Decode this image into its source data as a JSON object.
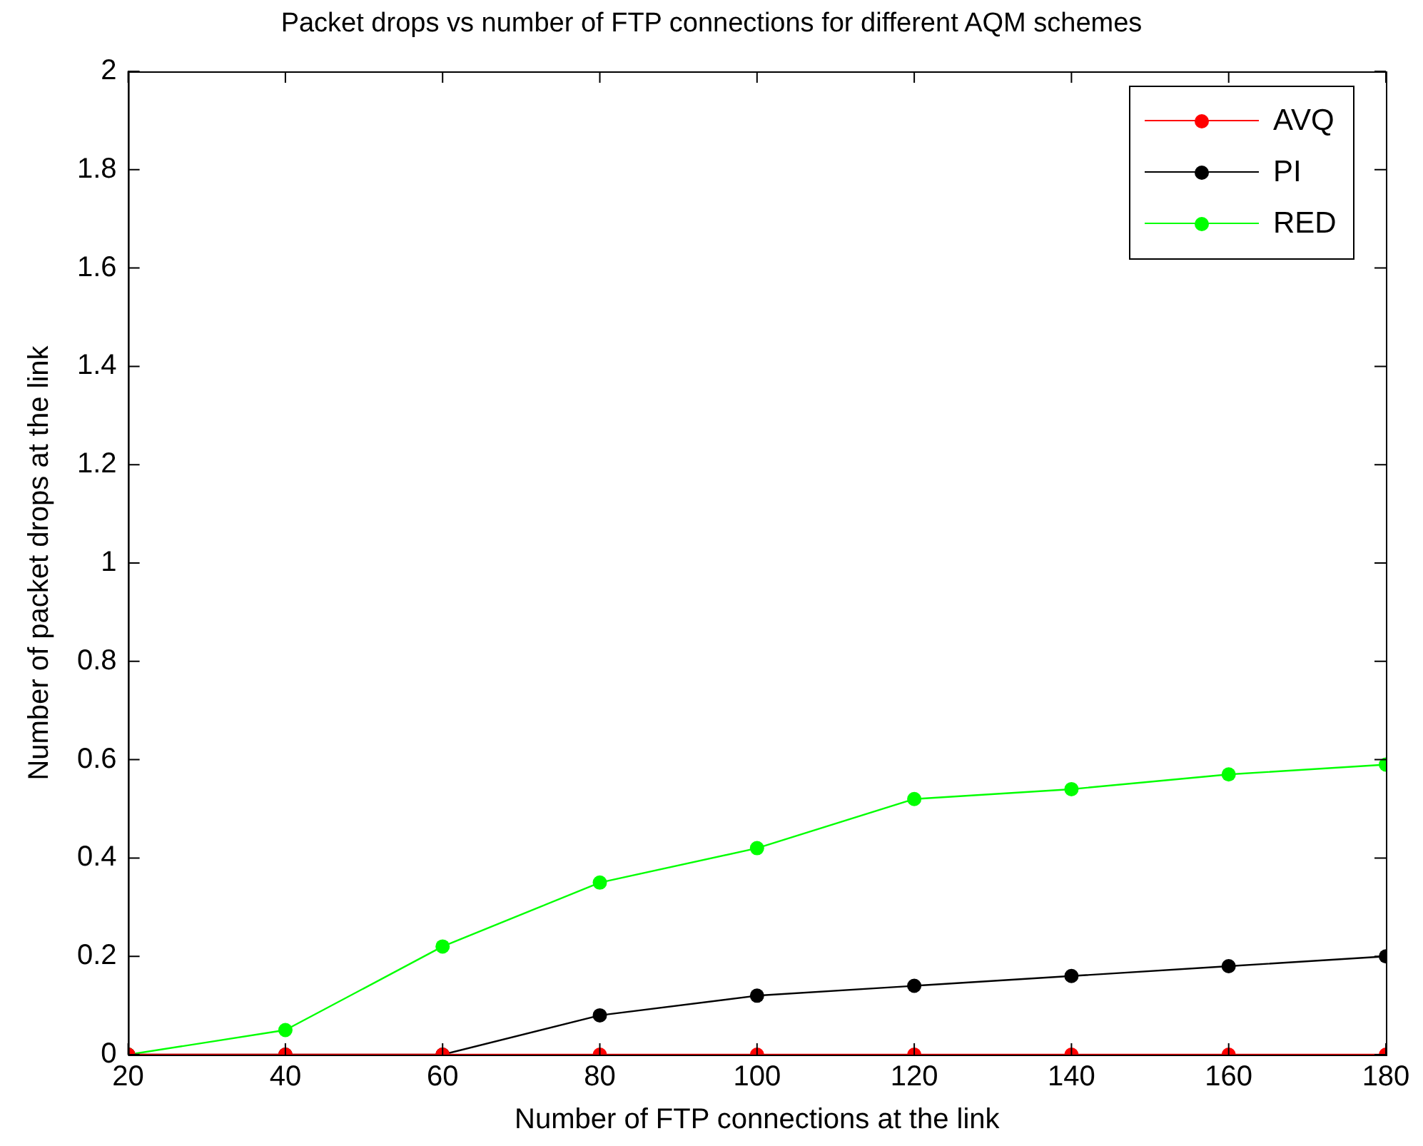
{
  "chart_data": {
    "type": "line",
    "title": "Packet drops vs number of FTP connections for different AQM schemes",
    "xlabel": "Number of FTP connections at the link",
    "ylabel": "Number of packet drops at the link",
    "x": [
      20,
      40,
      60,
      80,
      100,
      120,
      140,
      160,
      180
    ],
    "series": [
      {
        "name": "AVQ",
        "color": "#ff0000",
        "values": [
          0,
          0,
          0,
          0,
          0,
          0,
          0,
          0,
          0
        ]
      },
      {
        "name": "PI",
        "color": "#000000",
        "values": [
          0,
          0,
          0,
          0.08,
          0.12,
          0.14,
          0.16,
          0.18,
          0.2
        ]
      },
      {
        "name": "RED",
        "color": "#00ff00",
        "values": [
          0,
          0.05,
          0.22,
          0.35,
          0.42,
          0.52,
          0.54,
          0.57,
          0.59
        ]
      }
    ],
    "xlim": [
      20,
      180
    ],
    "xticks": [
      20,
      40,
      60,
      80,
      100,
      120,
      140,
      160,
      180
    ],
    "ylim": [
      0,
      2
    ],
    "yticks": [
      0,
      0.2,
      0.4,
      0.6,
      0.8,
      1,
      1.2,
      1.4,
      1.6,
      1.8,
      2
    ],
    "grid": false,
    "legend": "top right",
    "marker": "circle",
    "line_style": "solid"
  }
}
